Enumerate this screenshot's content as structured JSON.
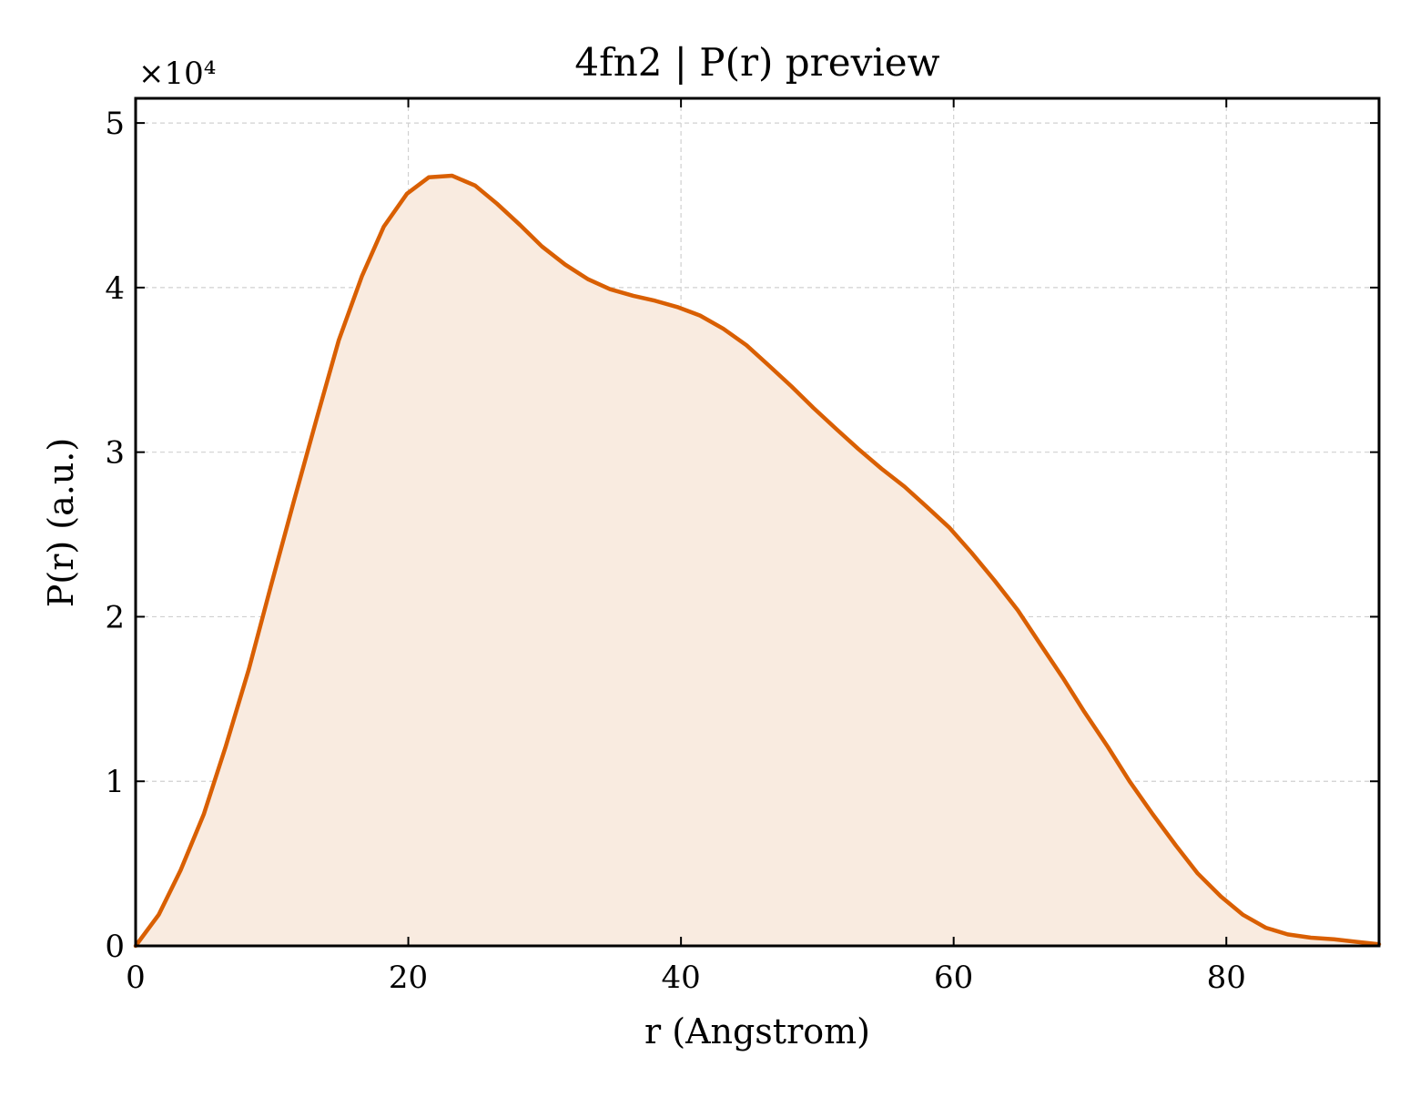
{
  "chart_data": {
    "type": "area",
    "title": "4fn2 | P(r) preview",
    "xlabel": "r (Angstrom)",
    "ylabel": "P(r) (a.u.)",
    "y_scale_label": "×10⁴",
    "y_multiplier": 10000,
    "xlim": [
      0,
      91.2
    ],
    "ylim": [
      0,
      5.15
    ],
    "xticks": [
      0,
      20,
      40,
      60,
      80
    ],
    "xtick_labels": [
      "0",
      "20",
      "40",
      "60",
      "80"
    ],
    "yticks": [
      0,
      1,
      2,
      3,
      4,
      5
    ],
    "ytick_labels": [
      "0",
      "1",
      "2",
      "3",
      "4",
      "5"
    ],
    "grid": true,
    "legend": "none",
    "colors": {
      "line": "#d95f02",
      "fill": "#f9ebe0",
      "grid": "#d0d0d0"
    },
    "series": [
      {
        "x": [
          0,
          1.7,
          3.3,
          5.0,
          6.6,
          8.3,
          9.9,
          11.6,
          13.3,
          14.9,
          16.6,
          18.2,
          19.9,
          21.5,
          23.2,
          24.9,
          26.5,
          28.2,
          29.8,
          31.5,
          33.2,
          34.8,
          36.5,
          38.1,
          39.8,
          41.4,
          43.1,
          44.8,
          46.4,
          48.1,
          49.7,
          51.4,
          53.0,
          54.7,
          56.4,
          58.0,
          59.7,
          61.3,
          63.0,
          64.7,
          66.3,
          68.0,
          69.6,
          71.3,
          72.9,
          74.6,
          76.3,
          77.9,
          79.6,
          81.2,
          82.9,
          84.5,
          86.2,
          87.9,
          89.5,
          91.2
        ],
        "values": [
          0,
          0.19,
          0.46,
          0.8,
          1.21,
          1.68,
          2.18,
          2.7,
          3.21,
          3.68,
          4.07,
          4.37,
          4.57,
          4.67,
          4.68,
          4.62,
          4.51,
          4.38,
          4.25,
          4.14,
          4.05,
          3.99,
          3.95,
          3.92,
          3.88,
          3.83,
          3.75,
          3.65,
          3.53,
          3.4,
          3.27,
          3.14,
          3.02,
          2.9,
          2.79,
          2.67,
          2.54,
          2.39,
          2.22,
          2.04,
          1.84,
          1.63,
          1.42,
          1.21,
          1.0,
          0.8,
          0.61,
          0.44,
          0.3,
          0.19,
          0.11,
          0.07,
          0.05,
          0.04,
          0.025,
          0.01
        ]
      }
    ]
  }
}
